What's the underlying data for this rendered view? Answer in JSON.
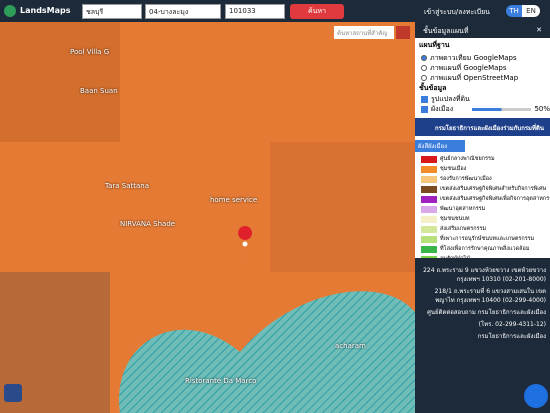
{
  "header": {
    "brand": "LandsMaps",
    "province": "ชลบุรี",
    "district": "04-บางละมุง",
    "parcel": "101033",
    "search": "ค้นหา",
    "login": "เข้าสู่ระบบ/ลงทะเบียน",
    "lang_th": "TH",
    "lang_en": "EN"
  },
  "map": {
    "place_search": "ค้นหาสถานที่สำคัญ",
    "labels": [
      "Pool Villa G",
      "Baan Suan",
      "Tara Sattana",
      "NIRVANA Shade",
      "home service",
      "acharam",
      "Ristorante Da Marco"
    ]
  },
  "panel": {
    "title": "ชั้นข้อมูลแผนที่",
    "base_heading": "แผนที่ฐาน",
    "base_options": [
      "ภาพดาวเทียม GoogleMaps",
      "ภาพแผนที่ GoogleMaps",
      "ภาพแผนที่ OpenStreetMap"
    ],
    "layer_heading": "ชั้นข้อมูล",
    "layers": [
      "รูปแปลงที่ดิน",
      "ผังเมือง"
    ],
    "opacity": "50%",
    "banner": "กรมโยธาธิการและผังเมืองร่วมกับกรมที่ดิน",
    "legend_title": "ผังสีผังเมือง",
    "legend": [
      {
        "label": "ศูนย์กลางพาณิชยกรรม",
        "color": "#d7191c"
      },
      {
        "label": "ชุมชนเมือง",
        "color": "#f28c28"
      },
      {
        "label": "รองรับการพัฒนาเมือง",
        "color": "#f6c77a"
      },
      {
        "label": "เขตส่งเสริมเศรษฐกิจพิเศษสำหรับกิจการพิเศษ",
        "color": "#7b4a1e"
      },
      {
        "label": "เขตส่งเสริมเศรษฐกิจพิเศษเพื่อกิจการอุตสาหกรรม",
        "color": "#a020c0"
      },
      {
        "label": "พัฒนาอุตสาหกรรม",
        "color": "#d9a8e8"
      },
      {
        "label": "ชุมชนชนบท",
        "color": "#f5f0c8"
      },
      {
        "label": "ส่งเสริมเกษตรกรรม",
        "color": "#d4e89a"
      },
      {
        "label": "ที่เพาะการอนุรักษ์ชนบทและเกษตรกรรม",
        "color": "#b5e07a"
      },
      {
        "label": "ที่โล่งเพื่อการรักษาคุณภาพสิ่งแวดล้อม",
        "color": "#3bb54a"
      },
      {
        "label": "อนุรักษ์ป่าไม้",
        "color": "#7ad14a"
      }
    ]
  },
  "footer": {
    "lines": [
      "224 ถ.พระราม 9 แขวงห้วยขวาง เขตห้วยขวาง กรุงเทพฯ 10310 (02-201-8000)",
      "218/1 ถ.พระรามที่ 6 แขวงสามเสนใน เขตพญาไท กรุงเทพฯ 10400 (02-299-4000)",
      "ศูนย์ติดต่อสอบถาม กรมโยธาธิการและผังเมือง",
      "(โทร. 02-299-4311-12)",
      "กรมโยธาธิการและผังเมือง"
    ]
  }
}
